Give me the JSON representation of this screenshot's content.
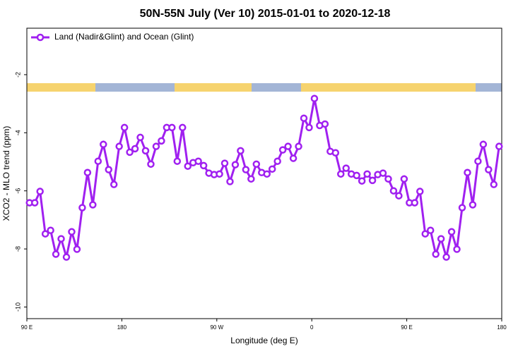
{
  "chart_data": {
    "type": "line",
    "title": "50N-55N July (Ver 10)   2015-01-01 to 2020-12-18",
    "xlabel": "Longitude (deg E)",
    "ylabel": "XCO2 - MLO trend (ppm)",
    "x": [
      92.5,
      97.5,
      102.5,
      107.5,
      112.5,
      117.5,
      122.5,
      127.5,
      132.5,
      137.5,
      142.5,
      147.5,
      152.5,
      157.5,
      162.5,
      167.5,
      172.5,
      177.5,
      182.5,
      187.5,
      192.5,
      197.5,
      202.5,
      207.5,
      212.5,
      217.5,
      222.5,
      227.5,
      232.5,
      237.5,
      242.5,
      247.5,
      252.5,
      257.5,
      262.5,
      267.5,
      272.5,
      277.5,
      282.5,
      287.5,
      292.5,
      297.5,
      302.5,
      307.5,
      312.5,
      317.5,
      322.5,
      327.5,
      332.5,
      337.5,
      342.5,
      347.5,
      352.5,
      357.5,
      362.5,
      367.5,
      372.5,
      377.5,
      382.5,
      387.5,
      392.5,
      397.5,
      402.5,
      407.5,
      412.5,
      417.5,
      422.5,
      427.5,
      432.5,
      437.5,
      442.5,
      447.5,
      452.5,
      457.5,
      462.5,
      467.5,
      472.5,
      477.5,
      482.5,
      487.5,
      492.5,
      497.5,
      502.5,
      507.5,
      512.5,
      517.5,
      522.5,
      527.5,
      532.5,
      537.5
    ],
    "series": [
      {
        "name": "Land (Nadir&Glint) and Ocean (Glint)",
        "color": "#a020f0",
        "values": [
          -6.41,
          -6.41,
          -6.02,
          -7.48,
          -7.36,
          -8.18,
          -7.65,
          -8.28,
          -7.41,
          -8.01,
          -6.58,
          -5.37,
          -6.48,
          -4.98,
          -4.4,
          -5.27,
          -5.78,
          -4.47,
          -3.82,
          -4.67,
          -4.55,
          -4.16,
          -4.62,
          -5.08,
          -4.47,
          -4.28,
          -3.82,
          -3.82,
          -4.98,
          -3.82,
          -5.15,
          -5.03,
          -4.98,
          -5.13,
          -5.39,
          -5.44,
          -5.42,
          -5.05,
          -5.68,
          -5.1,
          -4.62,
          -5.27,
          -5.59,
          -5.08,
          -5.37,
          -5.42,
          -5.25,
          -4.98,
          -4.59,
          -4.47,
          -4.88,
          -4.47,
          -3.5,
          -3.82,
          -2.82,
          -3.75,
          -3.7,
          -4.64,
          -4.69,
          -5.42,
          -5.22,
          -5.42,
          -5.47,
          -5.66,
          -5.42,
          -5.64,
          -5.44,
          -5.39,
          -5.59,
          -6.0,
          -6.17,
          -5.59,
          -6.41,
          -6.41,
          -6.02,
          -7.48,
          -7.36,
          -8.18,
          -7.65,
          -8.28,
          -7.41,
          -8.01,
          -6.58,
          -5.37,
          -6.48,
          -4.98,
          -4.4,
          -5.27,
          -5.78,
          -4.47
        ]
      }
    ],
    "xlim": [
      90,
      540
    ],
    "xticks": [
      {
        "value": 90,
        "label": "90 E"
      },
      {
        "value": 180,
        "label": "180"
      },
      {
        "value": 270,
        "label": "90 W"
      },
      {
        "value": 360,
        "label": "0"
      },
      {
        "value": 450,
        "label": "90 E"
      },
      {
        "value": 540,
        "label": "180"
      }
    ],
    "ylim": [
      -10.4,
      -0.4
    ],
    "yticks": [
      -10,
      -8,
      -6,
      -4,
      -2
    ],
    "grid": false,
    "legend": "top-left"
  }
}
